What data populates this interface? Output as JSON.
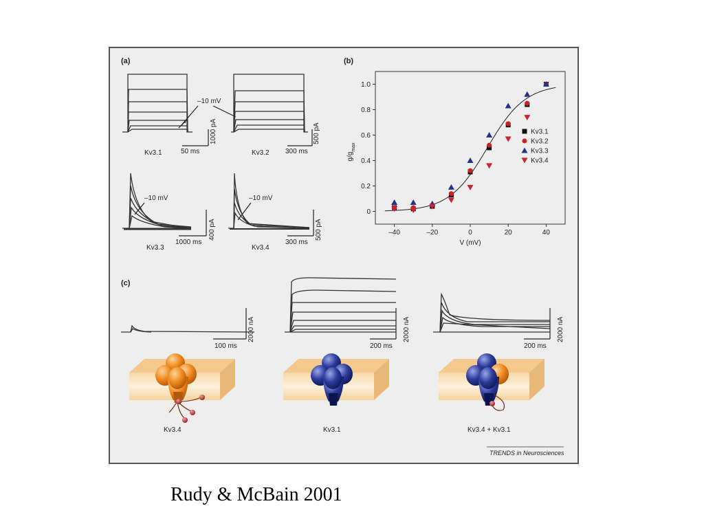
{
  "caption": "Rudy & McBain 2001",
  "colors": {
    "panel_bg": "#eeeeee",
    "kv31": "#111111",
    "kv32": "#cc2222",
    "kv33": "#223388",
    "kv34": "#cc2233",
    "orange_channel": "#e8801a",
    "blue_channel": "#1f2a7a"
  },
  "panel_a": {
    "label": "(a)",
    "voltage_label": "–10 mV",
    "traces": [
      {
        "name": "Kv3.1",
        "time_scale": "50 ms",
        "current_scale": "1000 pA"
      },
      {
        "name": "Kv3.2",
        "time_scale": "300 ms",
        "current_scale": "500 pA"
      },
      {
        "name": "Kv3.3",
        "time_scale": "1000 ms",
        "current_scale": "400 pA"
      },
      {
        "name": "Kv3.4",
        "time_scale": "300 ms",
        "current_scale": "500 pA"
      }
    ]
  },
  "panel_b": {
    "label": "(b)"
  },
  "panel_c": {
    "label": "(c)",
    "recordings": [
      {
        "time_scale": "100 ms",
        "current_scale": "2000 nA"
      },
      {
        "time_scale": "200 ms",
        "current_scale": "2000 nA"
      },
      {
        "time_scale": "200 ms",
        "current_scale": "2000 nA"
      }
    ],
    "channels": [
      "Kv3.4",
      "Kv3.1",
      "Kv3.4 + Kv3.1"
    ]
  },
  "journal_credit": "TRENDS in Neurosciences",
  "chart_data": {
    "type": "scatter",
    "title": "",
    "xlabel": "V (mV)",
    "ylabel_main": "g/g",
    "ylabel_sub": "max",
    "xlim": [
      -50,
      50
    ],
    "ylim": [
      -0.1,
      1.1
    ],
    "x_ticks": [
      -40,
      -20,
      0,
      20,
      40
    ],
    "x_tick_labels": [
      "–40",
      "–20",
      "0",
      "20",
      "40"
    ],
    "y_ticks": [
      0,
      0.2,
      0.4,
      0.6,
      0.8,
      1.0
    ],
    "y_tick_labels": [
      "0",
      "0.2",
      "0.4",
      "0.6",
      "0.8",
      "1.0"
    ],
    "legend_position": "right-middle",
    "series": [
      {
        "name": "Kv3.1",
        "marker": "square",
        "color": "#111111",
        "x": [
          -40,
          -30,
          -20,
          -10,
          0,
          10,
          20,
          30,
          40
        ],
        "y": [
          0.03,
          0.02,
          0.04,
          0.13,
          0.31,
          0.5,
          0.68,
          0.84,
          1.0
        ]
      },
      {
        "name": "Kv3.2",
        "marker": "circle",
        "color": "#cc2222",
        "x": [
          -40,
          -30,
          -20,
          -10,
          0,
          10,
          20,
          30,
          40
        ],
        "y": [
          0.03,
          0.03,
          0.05,
          0.14,
          0.32,
          0.52,
          0.69,
          0.85,
          1.0
        ]
      },
      {
        "name": "Kv3.3",
        "marker": "triangle-up",
        "color": "#223388",
        "x": [
          -40,
          -30,
          -20,
          -10,
          0,
          10,
          20,
          30,
          40
        ],
        "y": [
          0.07,
          0.07,
          0.06,
          0.19,
          0.4,
          0.6,
          0.83,
          0.92,
          1.0
        ]
      },
      {
        "name": "Kv3.4",
        "marker": "triangle-down",
        "color": "#cc2233",
        "x": [
          -40,
          -30,
          -20,
          -10,
          0,
          10,
          20,
          30
        ],
        "y": [
          0.02,
          0.01,
          0.04,
          0.09,
          0.19,
          0.36,
          0.57,
          0.74
        ]
      }
    ],
    "fit": {
      "type": "boltzmann",
      "v_half": 9,
      "k": 10
    }
  }
}
